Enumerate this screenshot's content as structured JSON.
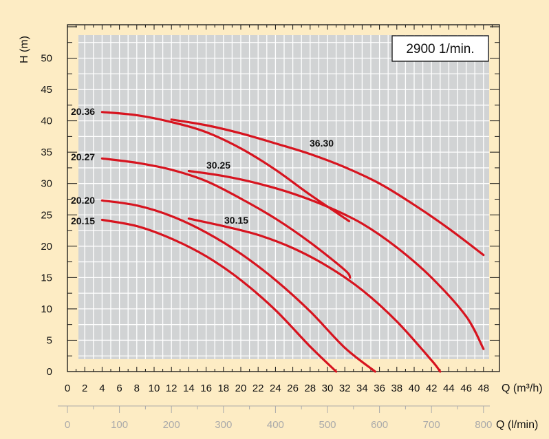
{
  "chart_data": {
    "type": "line",
    "speed_label": "2900 1/min.",
    "ylabel": "H (m)",
    "xlabel": "Q (m³/h)",
    "x2label": "Q (l/min)",
    "xlim": [
      0,
      49
    ],
    "ylim": [
      0,
      55
    ],
    "x_ticks": [
      0,
      2,
      4,
      6,
      8,
      10,
      12,
      14,
      16,
      18,
      20,
      22,
      24,
      26,
      28,
      30,
      32,
      34,
      36,
      38,
      40,
      42,
      44,
      46,
      48
    ],
    "y_ticks": [
      0,
      5,
      10,
      15,
      20,
      25,
      30,
      35,
      40,
      45,
      50
    ],
    "x2_ticks": [
      0,
      100,
      200,
      300,
      400,
      500,
      600,
      700,
      800
    ],
    "grid": true,
    "colors": {
      "background": "#fdecc4",
      "plot": "#d1d3d4",
      "grid": "#ffffff",
      "curve": "#d7141f"
    },
    "series": [
      {
        "name": "20.36",
        "x": [
          4,
          8,
          12,
          16,
          20,
          24,
          28,
          32.5
        ],
        "y": [
          41.4,
          40.9,
          39.8,
          38.2,
          35.6,
          32.2,
          28.2,
          24.0
        ]
      },
      {
        "name": "20.27",
        "x": [
          4,
          8,
          12,
          16,
          20,
          24,
          28,
          32,
          32.6
        ],
        "y": [
          34.0,
          33.3,
          32.2,
          30.4,
          27.6,
          24.4,
          20.6,
          16.2,
          15.0
        ]
      },
      {
        "name": "20.20",
        "x": [
          4,
          8,
          12,
          16,
          20,
          24,
          28,
          32,
          35.5
        ],
        "y": [
          27.3,
          26.5,
          24.8,
          22.2,
          18.8,
          14.6,
          9.6,
          3.8,
          0
        ]
      },
      {
        "name": "20.15",
        "x": [
          4,
          8,
          12,
          16,
          20,
          24,
          28,
          31
        ],
        "y": [
          24.2,
          23.2,
          21.2,
          18.4,
          14.6,
          9.8,
          4.0,
          0
        ]
      },
      {
        "name": "36.30",
        "x": [
          12,
          16,
          20,
          24,
          28,
          32,
          36,
          40,
          44,
          48
        ],
        "y": [
          40.2,
          39.3,
          38.0,
          36.4,
          34.7,
          32.6,
          30.0,
          26.6,
          22.8,
          18.6
        ]
      },
      {
        "name": "30.25",
        "x": [
          14,
          18,
          22,
          26,
          30,
          34,
          38,
          42,
          46,
          48
        ],
        "y": [
          32.0,
          31.2,
          30.0,
          28.4,
          26.3,
          23.6,
          19.8,
          15.0,
          8.8,
          3.6
        ]
      },
      {
        "name": "30.15",
        "x": [
          14,
          18,
          22,
          26,
          30,
          34,
          38,
          42,
          43
        ],
        "y": [
          24.4,
          23.2,
          21.8,
          19.7,
          16.8,
          13.0,
          8.0,
          1.8,
          0
        ]
      }
    ]
  }
}
